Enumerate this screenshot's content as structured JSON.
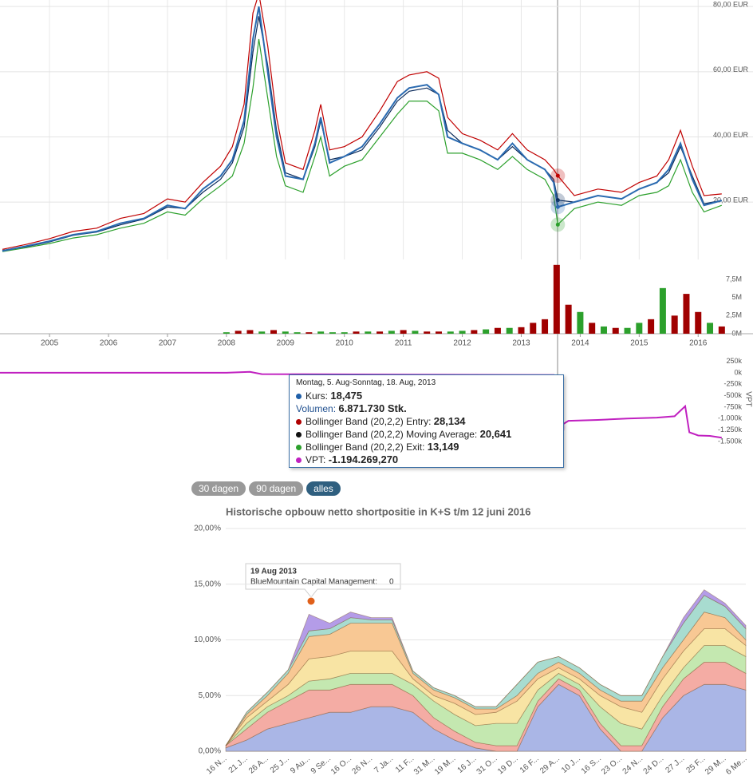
{
  "chart_data": [
    {
      "type": "line",
      "x": [
        2004.2,
        2004.6,
        2005.0,
        2005.4,
        2005.8,
        2006.2,
        2006.6,
        2007.0,
        2007.3,
        2007.6,
        2007.9,
        2008.1,
        2008.3,
        2008.45,
        2008.55,
        2008.7,
        2008.85,
        2009.0,
        2009.3,
        2009.5,
        2009.6,
        2009.75,
        2010.0,
        2010.3,
        2010.6,
        2010.9,
        2011.1,
        2011.4,
        2011.6,
        2011.75,
        2012.0,
        2012.3,
        2012.6,
        2012.85,
        2013.1,
        2013.4,
        2013.55,
        2013.62,
        2013.9,
        2014.3,
        2014.7,
        2015.0,
        2015.3,
        2015.5,
        2015.7,
        2015.9,
        2016.1,
        2016.4
      ],
      "series": [
        {
          "color": "#c00000",
          "values": [
            5.5,
            7,
            8.8,
            11,
            12,
            15,
            16.5,
            21,
            20,
            26,
            31,
            37,
            50,
            78,
            84,
            68,
            46,
            32,
            30,
            42,
            50,
            36,
            37,
            40,
            48,
            57,
            59,
            60,
            58,
            46,
            41,
            39,
            36,
            41,
            36,
            33,
            30,
            28.1,
            22,
            24,
            23,
            26,
            28,
            33,
            42,
            31,
            22,
            22.5
          ]
        },
        {
          "color": "#2ca02c",
          "values": [
            4.8,
            6,
            7.3,
            9,
            10,
            12,
            13.5,
            17,
            16,
            21,
            25,
            28,
            38,
            55,
            70,
            52,
            34,
            25,
            23,
            34,
            40,
            28,
            31,
            33,
            40,
            47,
            51,
            51,
            48,
            35,
            35,
            33,
            30,
            34,
            30,
            27,
            22,
            13.1,
            18,
            20,
            19,
            22,
            23,
            25,
            33,
            23,
            17,
            19
          ]
        },
        {
          "color": "#0a2a5a",
          "values": [
            5.2,
            6.3,
            7.8,
            9.8,
            10.8,
            13,
            14.8,
            18.5,
            18,
            23,
            27,
            32,
            43,
            66,
            77,
            62,
            42,
            29,
            27,
            37,
            45,
            33,
            34,
            36,
            43,
            51,
            54,
            55,
            53,
            42,
            38,
            36,
            33,
            37,
            33,
            30,
            27,
            20.6,
            20,
            22,
            21,
            24,
            26,
            29,
            37,
            28,
            19.5,
            20.5
          ]
        },
        {
          "color": "#2a6ab0",
          "values": [
            5,
            6.5,
            8,
            10,
            11,
            13.5,
            15,
            19,
            18,
            24,
            28,
            33,
            45,
            70,
            80,
            60,
            40,
            28,
            27,
            38,
            46,
            32,
            34,
            37,
            44,
            52,
            55,
            56,
            53,
            40,
            38,
            36,
            33,
            38,
            33,
            30,
            26,
            18.5,
            20,
            22,
            21,
            24,
            26,
            30,
            38,
            27,
            19,
            20.5
          ]
        }
      ],
      "xlim": [
        2004.16,
        2016.93
      ],
      "xticks": [
        2005,
        2006,
        2007,
        2008,
        2009,
        2010,
        2011,
        2012,
        2013,
        2014,
        2015,
        2016
      ],
      "ylim": [
        2.4,
        82
      ],
      "yticks": [
        {
          "value": 20,
          "label": "20,00 EUR"
        },
        {
          "value": 40,
          "label": "40,00 EUR"
        },
        {
          "value": 60,
          "label": "60,00 EUR"
        },
        {
          "value": 80,
          "label": "80,00 EUR"
        }
      ],
      "grid": true
    },
    {
      "type": "bar",
      "x": [
        2008.0,
        2008.2,
        2008.4,
        2008.6,
        2008.8,
        2009.0,
        2009.2,
        2009.4,
        2009.6,
        2009.8,
        2010.0,
        2010.2,
        2010.4,
        2010.6,
        2010.8,
        2011.0,
        2011.2,
        2011.4,
        2011.6,
        2011.8,
        2012.0,
        2012.2,
        2012.4,
        2012.6,
        2012.8,
        2013.0,
        2013.2,
        2013.4,
        2013.6,
        2013.8,
        2014.0,
        2014.2,
        2014.4,
        2014.6,
        2014.8,
        2015.0,
        2015.2,
        2015.4,
        2015.6,
        2015.8,
        2016.0,
        2016.2,
        2016.4
      ],
      "values": [
        0.2,
        0.4,
        0.5,
        0.3,
        0.5,
        0.3,
        0.2,
        0.2,
        0.3,
        0.2,
        0.2,
        0.3,
        0.3,
        0.3,
        0.4,
        0.5,
        0.4,
        0.3,
        0.3,
        0.3,
        0.4,
        0.5,
        0.6,
        0.8,
        0.8,
        0.9,
        1.5,
        2,
        9.5,
        4,
        3,
        1.5,
        1,
        0.8,
        0.8,
        1.5,
        2,
        6.3,
        2.5,
        5.5,
        3,
        1.5,
        1
      ],
      "colors": [
        "#2ca02c",
        "#a00000",
        "#a00000",
        "#2ca02c",
        "#a00000",
        "#2ca02c",
        "#2ca02c",
        "#a00000",
        "#2ca02c",
        "#2ca02c",
        "#2ca02c",
        "#a00000",
        "#2ca02c",
        "#a00000",
        "#2ca02c",
        "#a00000",
        "#2ca02c",
        "#a00000",
        "#a00000",
        "#2ca02c",
        "#2ca02c",
        "#a00000",
        "#2ca02c",
        "#a00000",
        "#2ca02c",
        "#a00000",
        "#a00000",
        "#a00000",
        "#a00000",
        "#a00000",
        "#2ca02c",
        "#a00000",
        "#2ca02c",
        "#a00000",
        "#2ca02c",
        "#2ca02c",
        "#a00000",
        "#2ca02c",
        "#a00000",
        "#a00000",
        "#a00000",
        "#2ca02c",
        "#a00000"
      ],
      "xlim": [
        2004.16,
        2016.93
      ],
      "xticks": [
        2005,
        2006,
        2007,
        2008,
        2009,
        2010,
        2011,
        2012,
        2013,
        2014,
        2015,
        2016
      ],
      "ylim": [
        0,
        9.7
      ],
      "yticks": [
        {
          "value": 0,
          "label": "0M"
        },
        {
          "value": 2.5,
          "label": "2,5M"
        },
        {
          "value": 5,
          "label": "5M"
        },
        {
          "value": 7.5,
          "label": "7,5M"
        }
      ]
    },
    {
      "type": "line",
      "y_label": "VPT",
      "x": [
        2004.16,
        2008.0,
        2008.4,
        2008.6,
        2013.55,
        2013.62,
        2013.8,
        2014.3,
        2014.8,
        2015.3,
        2015.6,
        2015.78,
        2015.85,
        2016.0,
        2016.2,
        2016.4
      ],
      "series": [
        {
          "color": "#c020c0",
          "values": [
            0,
            0,
            20,
            -30,
            -50,
            -1194,
            -1050,
            -1030,
            -1000,
            -980,
            -950,
            -730,
            -1300,
            -1370,
            -1380,
            -1420
          ]
        }
      ],
      "xlim": [
        2004.16,
        2016.93
      ],
      "ylim": [
        -1850,
        260
      ],
      "yticks": [
        {
          "value": 250,
          "label": "250k"
        },
        {
          "value": 0,
          "label": "0k"
        },
        {
          "value": -250,
          "label": "-250k"
        },
        {
          "value": -500,
          "label": "-500k"
        },
        {
          "value": -750,
          "label": "-750k"
        },
        {
          "value": -1000,
          "label": "-1.000k"
        },
        {
          "value": -1250,
          "label": "-1.250k"
        },
        {
          "value": -1500,
          "label": "-1.500k"
        }
      ]
    },
    {
      "type": "area",
      "title": "Historische opbouw netto shortpositie in K+S t/m 12 juni 2016",
      "categories": [
        "16 N...",
        "21 J...",
        "26 A...",
        "25 J...",
        "9 Au...",
        "9 Se...",
        "16 O...",
        "26 N...",
        "7 Ja...",
        "11 F...",
        "31 M...",
        "19 M...",
        "16 J...",
        "31 O...",
        "19 D...",
        "16 F...",
        "29 A...",
        "10 J...",
        "16 S...",
        "23 O...",
        "24 N...",
        "24 D...",
        "27 J...",
        "25 F...",
        "29 M...",
        "6 Me..."
      ],
      "series": [
        {
          "color": "#aab6e6",
          "values": [
            0.3,
            1,
            2,
            2.5,
            3,
            3.5,
            3.5,
            4,
            4,
            3.5,
            2,
            1,
            0.3,
            0,
            0,
            4,
            6,
            5,
            2,
            0,
            0,
            3,
            5,
            6,
            6,
            5.5
          ]
        },
        {
          "color": "#f4aca4",
          "values": [
            0.2,
            1,
            1.5,
            2,
            2.5,
            2,
            2.5,
            2,
            2,
            1.5,
            1,
            0.8,
            0.5,
            0.5,
            0.5,
            0.5,
            0.5,
            0.5,
            0.5,
            0.5,
            0.5,
            1,
            1.5,
            2,
            2,
            1.5
          ]
        },
        {
          "color": "#c4e8b0",
          "values": [
            0,
            0.5,
            0.5,
            0.5,
            0.8,
            1,
            1,
            1,
            1,
            1,
            1.5,
            1.5,
            1.5,
            2,
            2,
            1,
            0.5,
            0.5,
            1.5,
            2,
            1.5,
            1,
            1,
            1.5,
            1.5,
            1.5
          ]
        },
        {
          "color": "#f8e4a4",
          "values": [
            0,
            0.5,
            0.5,
            1,
            2,
            2,
            2,
            2,
            2,
            0.5,
            0.5,
            1,
            1,
            1,
            2,
            1,
            0.5,
            0.5,
            1,
            1.5,
            1.5,
            1.5,
            1.5,
            1.5,
            1.5,
            1
          ]
        },
        {
          "color": "#f8c894",
          "values": [
            0,
            0.3,
            0.5,
            1,
            2,
            2,
            2.5,
            2.5,
            2.5,
            0.5,
            0.5,
            0.5,
            0.5,
            0.3,
            0.5,
            0.5,
            0.5,
            0.5,
            0.5,
            0.5,
            1,
            1,
            1,
            1.5,
            1,
            0.5
          ]
        },
        {
          "color": "#a8dcd0",
          "values": [
            0,
            0.2,
            0.3,
            0.3,
            0.5,
            0.5,
            0.5,
            0.3,
            0.3,
            0.2,
            0.2,
            0.2,
            0.2,
            0.2,
            1,
            1,
            0.5,
            0.5,
            0.5,
            0.5,
            0.5,
            1,
            1.5,
            1.5,
            1,
            1
          ]
        },
        {
          "color": "#b49ce8",
          "values": [
            0,
            0,
            0,
            0,
            1.5,
            0.5,
            0.5,
            0.2,
            0.2,
            0,
            0,
            0,
            0,
            0,
            0,
            0,
            0,
            0,
            0,
            0,
            0,
            0,
            0.5,
            0.5,
            0.3,
            0.3
          ]
        }
      ],
      "ylim": [
        0,
        20
      ],
      "yticks": [
        {
          "value": 0,
          "label": "0,00%"
        },
        {
          "value": 5,
          "label": "5,00%"
        },
        {
          "value": 10,
          "label": "10,00%"
        },
        {
          "value": 15,
          "label": "15,00%"
        },
        {
          "value": 20,
          "label": "20,00%"
        }
      ],
      "grid": true
    }
  ],
  "tooltip": {
    "date": "Montag, 5. Aug-Sonntag, 18. Aug, 2013",
    "rows": [
      {
        "label": "Kurs:",
        "value": "18,475",
        "color": "#1f5fa8"
      },
      {
        "label": "Volumen:",
        "value": "6.871.730 Stk."
      },
      {
        "label": "Bollinger Band (20,2,2) Entry:",
        "value": "28,134",
        "color": "#b00000"
      },
      {
        "label": "Bollinger Band (20,2,2) Moving Average:",
        "value": "20,641",
        "color": "#111111"
      },
      {
        "label": "Bollinger Band (20,2,2) Exit:",
        "value": "13,149",
        "color": "#2ca02c"
      },
      {
        "label": "VPT:",
        "value": "-1.194.269,270",
        "color": "#c020c0"
      }
    ]
  },
  "buttons": [
    "30 dagen",
    "90 dagen",
    "alles"
  ],
  "short_tooltip": {
    "date": "19 Aug 2013",
    "name": "BlueMountain Capital Management:",
    "value": "0"
  }
}
